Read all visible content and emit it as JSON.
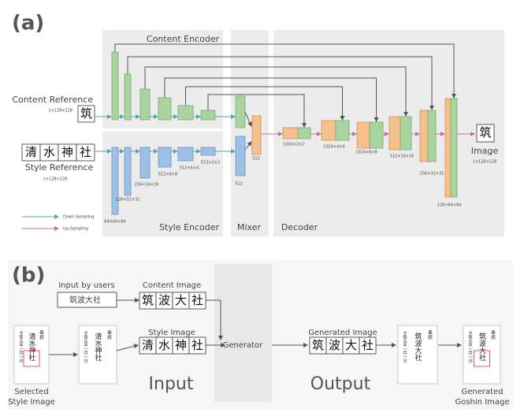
{
  "a": {
    "label": "(a)",
    "content_encoder": "Content Encoder",
    "style_encoder": "Style Encoder",
    "mixer": "Mixer",
    "decoder": "Decoder",
    "content_reference": {
      "title": "Content Reference",
      "size": "1×128×128",
      "glyph": "筑"
    },
    "style_reference": {
      "title": "Style Reference",
      "size": "n×128×128",
      "glyphs": [
        "清",
        "水",
        "神",
        "社"
      ]
    },
    "style_dims": [
      "64×64×64",
      "128×32×32",
      "256×16×16",
      "512×8×8",
      "512×4×4",
      "512×2×2"
    ],
    "mixer_dims": [
      "512",
      "512"
    ],
    "decoder_dims": [
      "1024×2×2",
      "1024×4×4",
      "1024×8×8",
      "512×16×16",
      "256×32×32",
      "128×64×64"
    ],
    "output": {
      "title": "Image",
      "size": "1×128×128",
      "glyph": "筑"
    },
    "legend": [
      "Down-Sampling",
      "Up-Sampling"
    ]
  },
  "b": {
    "label": "(b)",
    "input_by_users": "Input by users",
    "user_text": "筑波大社",
    "content_image": {
      "title": "Content Image",
      "glyphs": [
        "筑",
        "波",
        "大",
        "社"
      ]
    },
    "style_image": {
      "title": "Style Image",
      "glyphs": [
        "清",
        "水",
        "神",
        "社"
      ]
    },
    "generator": "Generator",
    "generated_image": {
      "title": "Generated Image",
      "glyphs": [
        "筑",
        "波",
        "大",
        "社"
      ]
    },
    "input": "Input",
    "output": "Output",
    "selected_style_image": [
      "Selected",
      "Style Image"
    ],
    "generated_goshin_image": [
      "Generated",
      "Goshin Image"
    ],
    "goshuin": {
      "header": "奉拝",
      "style_name": "清水神社",
      "generated_name": "筑波大社",
      "date": "令和元年一月一日"
    }
  }
}
